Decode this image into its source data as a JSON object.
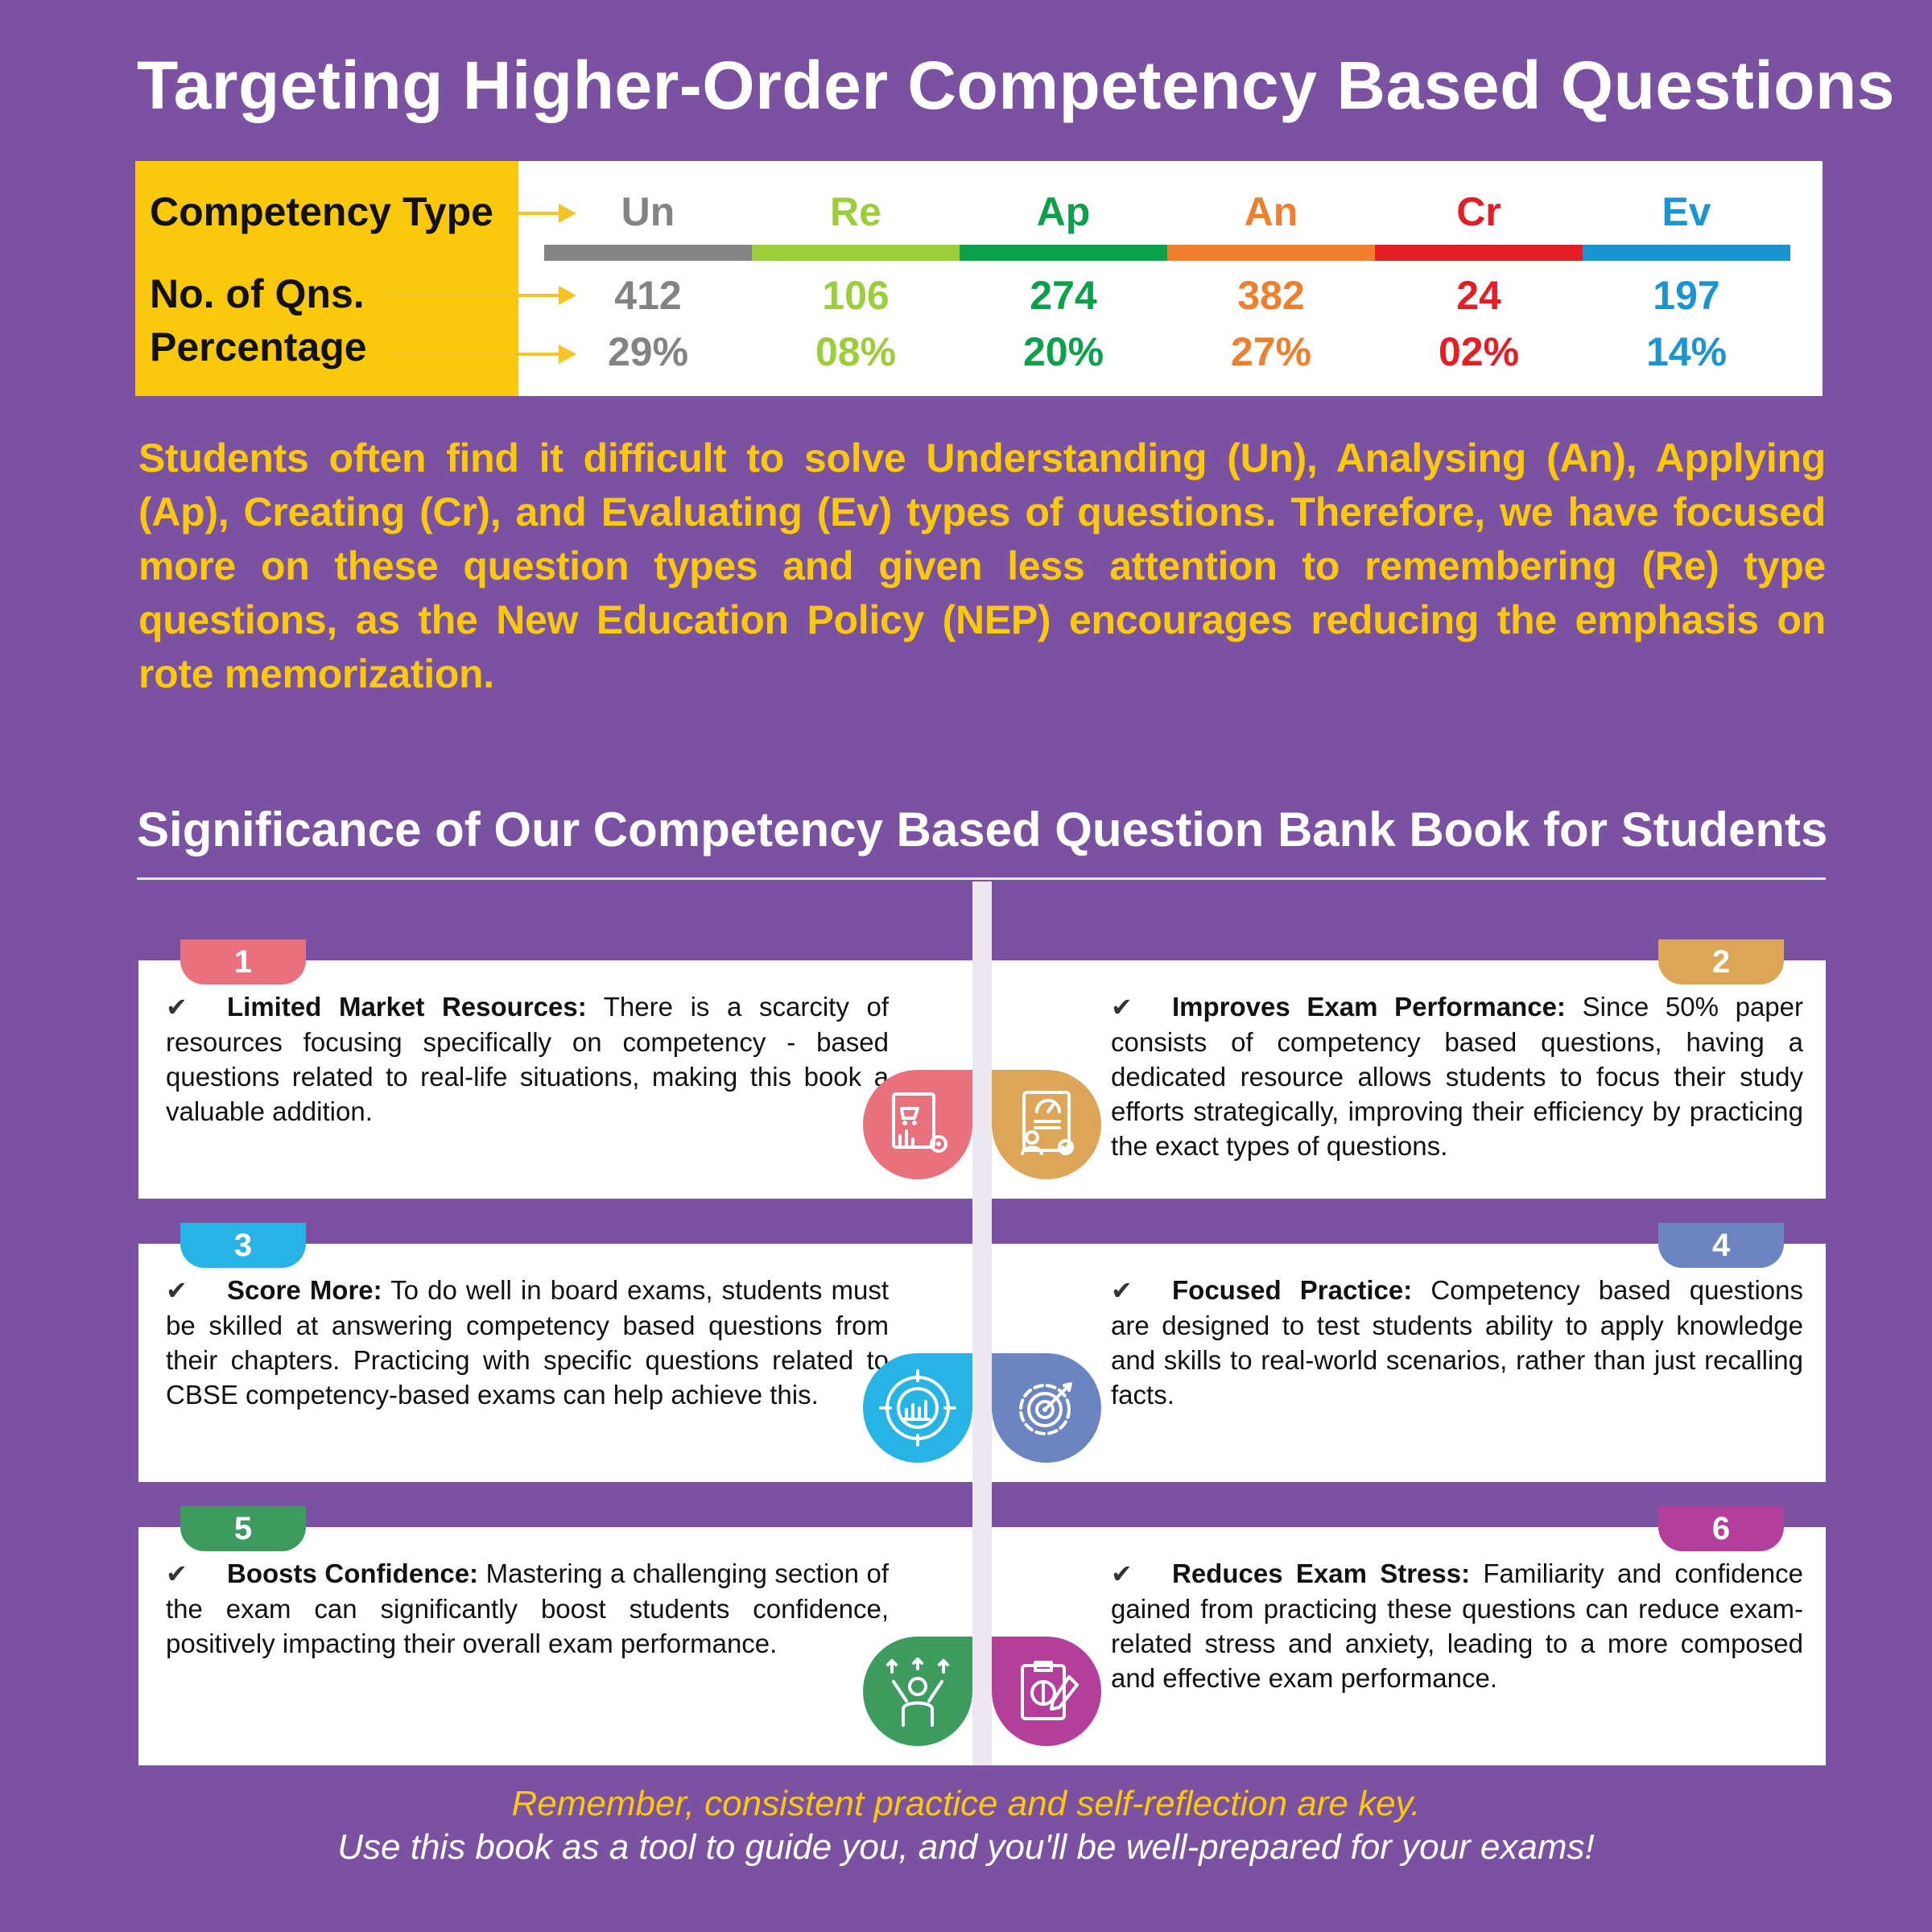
{
  "title": "Targeting Higher-Order Competency Based Questions",
  "table": {
    "row_labels": {
      "type": "Competency Type",
      "count": "No. of Qns.",
      "percentage": "Percentage"
    },
    "columns": [
      {
        "code": "Un",
        "count": "412",
        "percentage": "29%",
        "color": "#838383"
      },
      {
        "code": "Re",
        "count": "106",
        "percentage": "08%",
        "color": "#9ccd3b"
      },
      {
        "code": "Ap",
        "count": "274",
        "percentage": "20%",
        "color": "#0ba04a"
      },
      {
        "code": "An",
        "count": "382",
        "percentage": "27%",
        "color": "#ef7f2c"
      },
      {
        "code": "Cr",
        "count": "24",
        "percentage": "02%",
        "color": "#e51e26"
      },
      {
        "code": "Ev",
        "count": "197",
        "percentage": "14%",
        "color": "#1b95d2"
      }
    ]
  },
  "intro": "Students often find it difficult to solve Understanding (Un), Analysing (An), Applying (Ap), Creating (Cr), and Evaluating (Ev) types of questions. Therefore, we have focused more on these question types and given less attention to remembering (Re) type questions, as the New Education Policy (NEP) encourages reducing the emphasis on rote memorization.",
  "significance_title": "Significance of Our Competency Based Question Bank Book for Students",
  "cards": [
    {
      "number": "1",
      "heading": "Limited Market Resources:",
      "text": "There is a scarcity of resources focusing specifically on competency - based questions related to real-life situations, making this book a valuable addition.",
      "color": "#e9717d",
      "icon": "market-analysis-icon"
    },
    {
      "number": "2",
      "heading": "Improves Exam Performance:",
      "text": "Since 50% paper consists of competency based questions, having a dedicated resource allows students to focus their study efforts strategically, improving their efficiency by practicing the exact types of questions.",
      "color": "#dda558",
      "icon": "performance-report-icon"
    },
    {
      "number": "3",
      "heading": "Score More:",
      "text": "To do well in board exams, students must be skilled at answering competency based questions from their chapters. Practicing with specific questions related to CBSE competency-based exams can help achieve this.",
      "color": "#27b3e3",
      "icon": "chart-target-icon"
    },
    {
      "number": "4",
      "heading": "Focused Practice:",
      "text": "Competency based questions are designed to test students ability to apply knowledge and skills to real-world scenarios, rather than just recalling facts.",
      "color": "#6d84c3",
      "icon": "gear-target-icon"
    },
    {
      "number": "5",
      "heading": "Boosts Confidence:",
      "text": "Mastering a challenging section of the exam can significantly boost students confidence, positively impacting their overall exam performance.",
      "color": "#3e9b5f",
      "icon": "confident-person-icon"
    },
    {
      "number": "6",
      "heading": "Reduces Exam Stress:",
      "text": "Familiarity and confidence gained from practicing these questions can reduce exam-related stress and anxiety, leading to a more composed and effective exam performance.",
      "color": "#b33f9b",
      "icon": "exam-clipboard-icon"
    }
  ],
  "closing": {
    "line1": "Remember, consistent practice and self-reflection are key.",
    "line2": "Use this book as a tool to guide you, and you'll be well-prepared for your exams!"
  },
  "colors": {
    "background": "#7b51a1",
    "accent_yellow": "#fbc90c"
  }
}
